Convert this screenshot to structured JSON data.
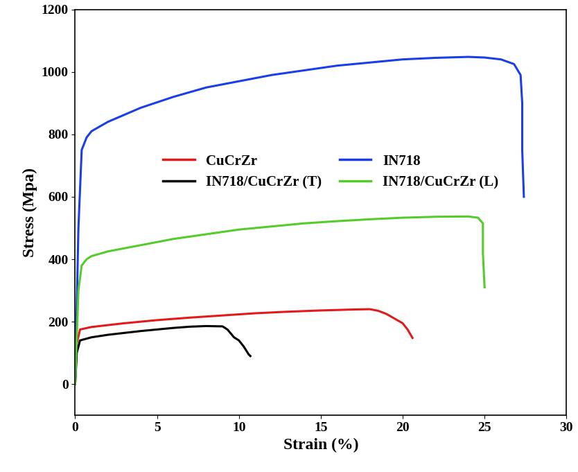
{
  "chart_data": {
    "type": "line",
    "x_label": "Strain (%)",
    "y_label": "Stress (Mpa)",
    "xlim": [
      0,
      30
    ],
    "xticks": [
      0,
      5,
      10,
      15,
      20,
      25,
      30
    ],
    "ylim": [
      -100,
      1200
    ],
    "yticks": [
      0,
      200,
      400,
      600,
      800,
      1000,
      1200
    ],
    "grid": false,
    "legend": "center",
    "series": [
      {
        "name": "CuCrZr",
        "color": "#e31a1c",
        "x": [
          0,
          0.1,
          0.3,
          1,
          3,
          5,
          7,
          9,
          11,
          13,
          15,
          17,
          18,
          18.5,
          19,
          19.5,
          20,
          20.3,
          20.6
        ],
        "values": [
          0,
          130,
          175,
          183,
          195,
          205,
          213,
          220,
          227,
          232,
          236,
          239,
          240,
          235,
          225,
          210,
          195,
          175,
          148
        ]
      },
      {
        "name": "IN718/CuCrZr (T)",
        "color": "#000000",
        "x": [
          0,
          0.1,
          0.3,
          1,
          2,
          4,
          6,
          7,
          8,
          9,
          9.3,
          9.7,
          10,
          10.3,
          10.6,
          10.7
        ],
        "values": [
          0,
          100,
          140,
          150,
          158,
          170,
          180,
          184,
          186,
          185,
          175,
          150,
          140,
          120,
          95,
          90
        ]
      },
      {
        "name": "IN718",
        "color": "#1a3ee8",
        "x": [
          0,
          0.2,
          0.4,
          0.7,
          1,
          2,
          4,
          6,
          8,
          10,
          12,
          14,
          16,
          18,
          20,
          22,
          24,
          25,
          26,
          26.8,
          27.2,
          27.3,
          27.3,
          27.4
        ],
        "values": [
          0,
          500,
          750,
          790,
          810,
          840,
          885,
          920,
          950,
          970,
          990,
          1005,
          1020,
          1030,
          1040,
          1045,
          1048,
          1046,
          1040,
          1025,
          990,
          900,
          750,
          600
        ]
      },
      {
        "name": "IN718/CuCrZr (L)",
        "color": "#55cc2b",
        "x": [
          0,
          0.2,
          0.4,
          0.7,
          1,
          2,
          4,
          6,
          8,
          10,
          12,
          14,
          16,
          18,
          20,
          22,
          24,
          24.6,
          24.9,
          24.9,
          25
        ],
        "values": [
          0,
          300,
          380,
          400,
          410,
          425,
          445,
          465,
          480,
          495,
          505,
          515,
          522,
          528,
          533,
          536,
          537,
          533,
          515,
          420,
          310
        ]
      }
    ]
  }
}
